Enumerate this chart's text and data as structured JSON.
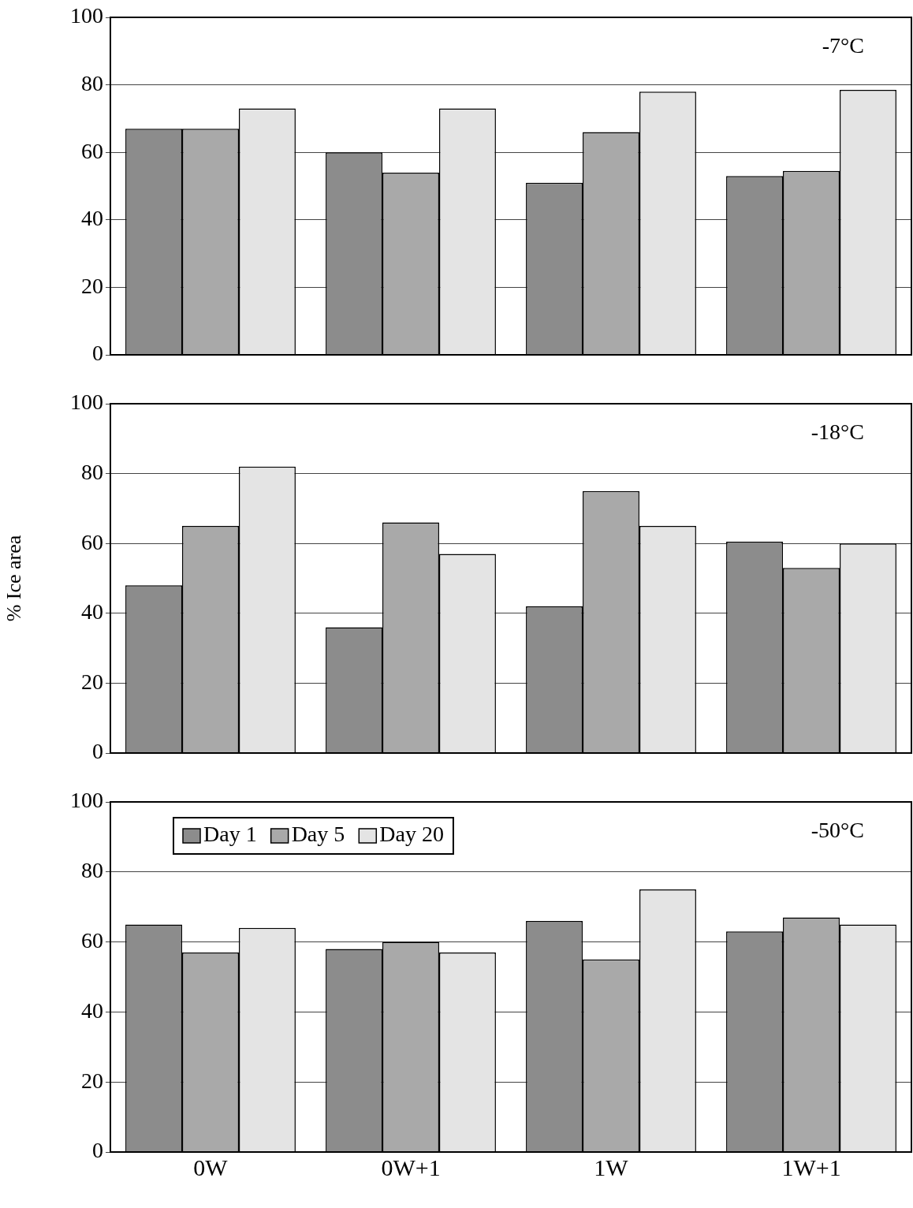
{
  "chart_data": [
    {
      "type": "bar",
      "categories": [
        null,
        null,
        null,
        null
      ],
      "series": [
        {
          "color": "#8c8c8c",
          "values": [
            67,
            60,
            51,
            53
          ]
        },
        {
          "color": "#a9a9a9",
          "values": [
            67,
            54,
            66,
            54.5
          ]
        },
        {
          "color": "#e4e4e4",
          "values": [
            73,
            73,
            78,
            78.5
          ]
        }
      ],
      "ylim": [
        0,
        100
      ],
      "yticks": [
        0,
        20,
        40,
        60,
        80,
        100
      ],
      "grid": "y",
      "tick_labels": "y",
      "annotations": [
        "-7°C"
      ]
    },
    {
      "type": "bar",
      "categories": [
        null,
        null,
        null,
        null
      ],
      "series": [
        {
          "color": "#8c8c8c",
          "values": [
            48,
            36,
            42,
            60.5
          ]
        },
        {
          "color": "#a9a9a9",
          "values": [
            65,
            66,
            75,
            53
          ]
        },
        {
          "color": "#e4e4e4",
          "values": [
            82,
            57,
            65,
            60
          ]
        }
      ],
      "ylabel": "% Ice area",
      "ylim": [
        0,
        100
      ],
      "yticks": [
        0,
        20,
        40,
        60,
        80,
        100
      ],
      "grid": "y",
      "tick_labels": "y",
      "annotations": [
        "-18°C"
      ]
    },
    {
      "type": "bar",
      "categories": [
        "0W",
        "0W+1",
        "1W",
        "1W+1"
      ],
      "series": [
        {
          "name": "Day 1",
          "color": "#8c8c8c",
          "values": [
            65,
            58,
            66,
            63
          ]
        },
        {
          "name": "Day 5",
          "color": "#a9a9a9",
          "values": [
            57,
            60,
            55,
            67
          ]
        },
        {
          "name": "Day 20",
          "color": "#e4e4e4",
          "values": [
            64,
            57,
            75,
            65
          ]
        }
      ],
      "ylim": [
        0,
        100
      ],
      "yticks": [
        0,
        20,
        40,
        60,
        80,
        100
      ],
      "grid": "y",
      "legend": "top left",
      "annotations": [
        "-50°C"
      ]
    }
  ]
}
